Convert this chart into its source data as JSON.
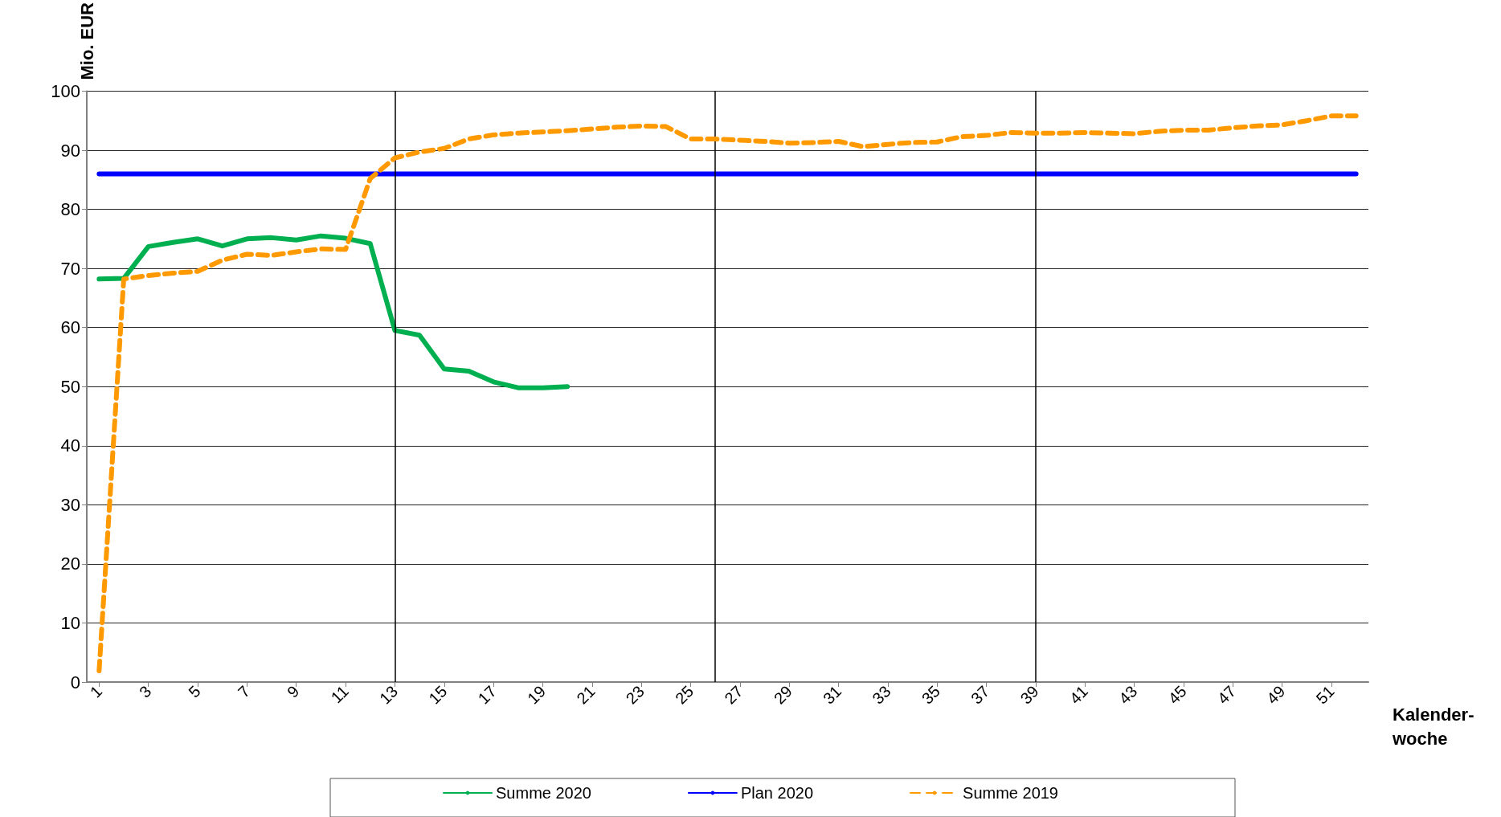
{
  "chart_data": {
    "type": "line",
    "ylabel": "Mio. EUR",
    "xlabel": "Kalender-\nwoche",
    "x": [
      1,
      2,
      3,
      4,
      5,
      6,
      7,
      8,
      9,
      10,
      11,
      12,
      13,
      14,
      15,
      16,
      17,
      18,
      19,
      20,
      21,
      22,
      23,
      24,
      25,
      26,
      27,
      28,
      29,
      30,
      31,
      32,
      33,
      34,
      35,
      36,
      37,
      38,
      39,
      40,
      41,
      42,
      43,
      44,
      45,
      46,
      47,
      48,
      49,
      50,
      51,
      52
    ],
    "xlim": [
      0.5,
      52.5
    ],
    "xticks": [
      1,
      3,
      5,
      7,
      9,
      11,
      13,
      15,
      17,
      19,
      21,
      23,
      25,
      27,
      29,
      31,
      33,
      35,
      37,
      39,
      41,
      43,
      45,
      47,
      49,
      51
    ],
    "ylim": [
      0,
      100
    ],
    "yticks": [
      0,
      10,
      20,
      30,
      40,
      50,
      60,
      70,
      80,
      90,
      100
    ],
    "grid": "y",
    "legend": "bottom",
    "marker": "none",
    "series": [
      {
        "name": "Summe 2020",
        "color": "#00b050",
        "line_style": "solid",
        "values": [
          68.2,
          68.3,
          73.7,
          74.4,
          75.0,
          73.8,
          75.0,
          75.2,
          74.8,
          75.5,
          75.1,
          74.2,
          59.5,
          58.7,
          53.0,
          52.6,
          50.8,
          49.8,
          49.8,
          50.0,
          null,
          null,
          null,
          null,
          null,
          null,
          null,
          null,
          null,
          null,
          null,
          null,
          null,
          null,
          null,
          null,
          null,
          null,
          null,
          null,
          null,
          null,
          null,
          null,
          null,
          null,
          null,
          null,
          null,
          null,
          null,
          null
        ]
      },
      {
        "name": "Plan 2020",
        "color": "#0000ff",
        "line_style": "solid",
        "values": [
          86,
          86,
          86,
          86,
          86,
          86,
          86,
          86,
          86,
          86,
          86,
          86,
          86,
          86,
          86,
          86,
          86,
          86,
          86,
          86,
          86,
          86,
          86,
          86,
          86,
          86,
          86,
          86,
          86,
          86,
          86,
          86,
          86,
          86,
          86,
          86,
          86,
          86,
          86,
          86,
          86,
          86,
          86,
          86,
          86,
          86,
          86,
          86,
          86,
          86,
          86,
          86
        ]
      },
      {
        "name": "Summe 2019",
        "color": "#ff9900",
        "line_style": "dashed",
        "values": [
          1.9,
          68.2,
          68.8,
          69.2,
          69.5,
          71.4,
          72.4,
          72.2,
          72.8,
          73.3,
          73.2,
          85.2,
          88.7,
          89.7,
          90.3,
          91.9,
          92.6,
          92.9,
          93.1,
          93.3,
          93.6,
          93.9,
          94.1,
          94.0,
          91.9,
          91.9,
          91.7,
          91.5,
          91.2,
          91.3,
          91.5,
          90.6,
          91.0,
          91.3,
          91.4,
          92.3,
          92.5,
          93.0,
          92.9,
          92.9,
          93.0,
          92.9,
          92.8,
          93.2,
          93.4,
          93.4,
          93.8,
          94.1,
          94.3,
          95.0,
          95.8,
          95.8
        ]
      }
    ],
    "ref_lines": [
      {
        "axis": "x",
        "value": 13,
        "color": "#000000"
      },
      {
        "axis": "x",
        "value": 26,
        "color": "#000000"
      },
      {
        "axis": "x",
        "value": 39,
        "color": "#000000"
      }
    ]
  }
}
